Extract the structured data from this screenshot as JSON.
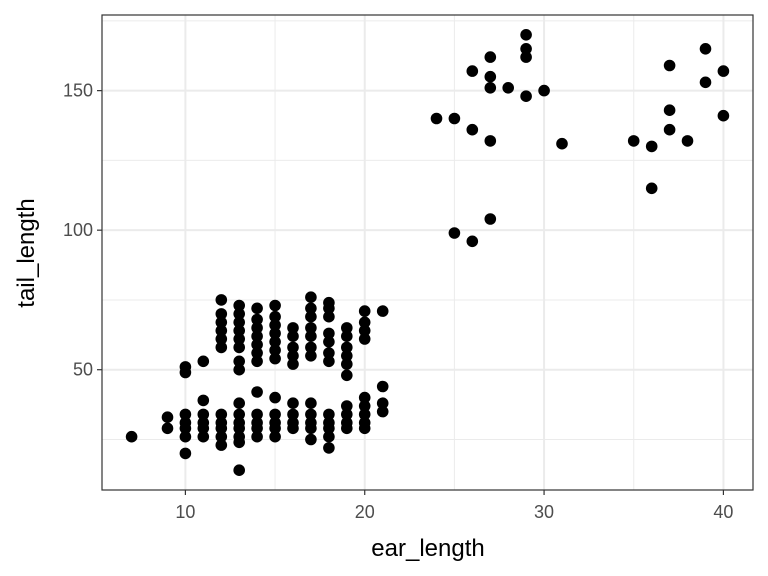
{
  "chart_data": {
    "type": "scatter",
    "title": "",
    "xlabel": "ear_length",
    "ylabel": "tail_length",
    "xlim": [
      5.35,
      41.65
    ],
    "ylim": [
      6.9,
      177.1
    ],
    "x_ticks": [
      10,
      20,
      30,
      40
    ],
    "y_ticks": [
      50,
      100,
      150
    ],
    "x_tick_labels": [
      "10",
      "20",
      "30",
      "40"
    ],
    "y_tick_labels": [
      "50",
      "100",
      "150"
    ],
    "grid": true,
    "legend": "none",
    "colors": {
      "points": "#000000",
      "grid": "#ebebeb",
      "panel_border": "#333333",
      "tick_label": "#4d4d4d"
    },
    "series": [
      {
        "points": [
          [
            7,
            26
          ],
          [
            9,
            29
          ],
          [
            9,
            33
          ],
          [
            10,
            20
          ],
          [
            10,
            26
          ],
          [
            10,
            29
          ],
          [
            10,
            31
          ],
          [
            10,
            34
          ],
          [
            10,
            49
          ],
          [
            10,
            51
          ],
          [
            11,
            26
          ],
          [
            11,
            29
          ],
          [
            11,
            31
          ],
          [
            11,
            34
          ],
          [
            11,
            39
          ],
          [
            11,
            53
          ],
          [
            12,
            23
          ],
          [
            12,
            26
          ],
          [
            12,
            29
          ],
          [
            12,
            31
          ],
          [
            12,
            34
          ],
          [
            12,
            58
          ],
          [
            12,
            61
          ],
          [
            12,
            64
          ],
          [
            12,
            67
          ],
          [
            12,
            70
          ],
          [
            12,
            75
          ],
          [
            13,
            14
          ],
          [
            13,
            24
          ],
          [
            13,
            26
          ],
          [
            13,
            29
          ],
          [
            13,
            31
          ],
          [
            13,
            34
          ],
          [
            13,
            38
          ],
          [
            13,
            50
          ],
          [
            13,
            53
          ],
          [
            13,
            58
          ],
          [
            13,
            61
          ],
          [
            13,
            64
          ],
          [
            13,
            67
          ],
          [
            13,
            70
          ],
          [
            13,
            73
          ],
          [
            14,
            26
          ],
          [
            14,
            29
          ],
          [
            14,
            31
          ],
          [
            14,
            34
          ],
          [
            14,
            42
          ],
          [
            14,
            53
          ],
          [
            14,
            56
          ],
          [
            14,
            59
          ],
          [
            14,
            62
          ],
          [
            14,
            65
          ],
          [
            14,
            68
          ],
          [
            14,
            72
          ],
          [
            15,
            26
          ],
          [
            15,
            29
          ],
          [
            15,
            31
          ],
          [
            15,
            34
          ],
          [
            15,
            40
          ],
          [
            15,
            54
          ],
          [
            15,
            57
          ],
          [
            15,
            60
          ],
          [
            15,
            63
          ],
          [
            15,
            66
          ],
          [
            15,
            69
          ],
          [
            15,
            73
          ],
          [
            16,
            29
          ],
          [
            16,
            31
          ],
          [
            16,
            34
          ],
          [
            16,
            38
          ],
          [
            16,
            52
          ],
          [
            16,
            55
          ],
          [
            16,
            58
          ],
          [
            16,
            62
          ],
          [
            16,
            65
          ],
          [
            17,
            25
          ],
          [
            17,
            29
          ],
          [
            17,
            31
          ],
          [
            17,
            34
          ],
          [
            17,
            38
          ],
          [
            17,
            55
          ],
          [
            17,
            58
          ],
          [
            17,
            62
          ],
          [
            17,
            65
          ],
          [
            17,
            69
          ],
          [
            17,
            72
          ],
          [
            17,
            76
          ],
          [
            18,
            22
          ],
          [
            18,
            26
          ],
          [
            18,
            29
          ],
          [
            18,
            31
          ],
          [
            18,
            34
          ],
          [
            18,
            53
          ],
          [
            18,
            56
          ],
          [
            18,
            60
          ],
          [
            18,
            63
          ],
          [
            18,
            69
          ],
          [
            18,
            72
          ],
          [
            18,
            74
          ],
          [
            19,
            29
          ],
          [
            19,
            31
          ],
          [
            19,
            34
          ],
          [
            19,
            37
          ],
          [
            19,
            48
          ],
          [
            19,
            52
          ],
          [
            19,
            55
          ],
          [
            19,
            58
          ],
          [
            19,
            62
          ],
          [
            19,
            65
          ],
          [
            20,
            29
          ],
          [
            20,
            31
          ],
          [
            20,
            34
          ],
          [
            20,
            37
          ],
          [
            20,
            40
          ],
          [
            20,
            61
          ],
          [
            20,
            64
          ],
          [
            20,
            67
          ],
          [
            20,
            71
          ],
          [
            21,
            35
          ],
          [
            21,
            38
          ],
          [
            21,
            44
          ],
          [
            21,
            71
          ],
          [
            24,
            140
          ],
          [
            25,
            99
          ],
          [
            25,
            140
          ],
          [
            26,
            96
          ],
          [
            26,
            136
          ],
          [
            26,
            157
          ],
          [
            27,
            104
          ],
          [
            27,
            132
          ],
          [
            27,
            151
          ],
          [
            27,
            155
          ],
          [
            27,
            162
          ],
          [
            28,
            151
          ],
          [
            29,
            148
          ],
          [
            29,
            162
          ],
          [
            29,
            165
          ],
          [
            29,
            170
          ],
          [
            30,
            150
          ],
          [
            31,
            131
          ],
          [
            35,
            132
          ],
          [
            36,
            115
          ],
          [
            36,
            130
          ],
          [
            37,
            136
          ],
          [
            37,
            143
          ],
          [
            37,
            159
          ],
          [
            38,
            132
          ],
          [
            39,
            153
          ],
          [
            39,
            165
          ],
          [
            40,
            141
          ],
          [
            40,
            157
          ]
        ]
      }
    ]
  }
}
